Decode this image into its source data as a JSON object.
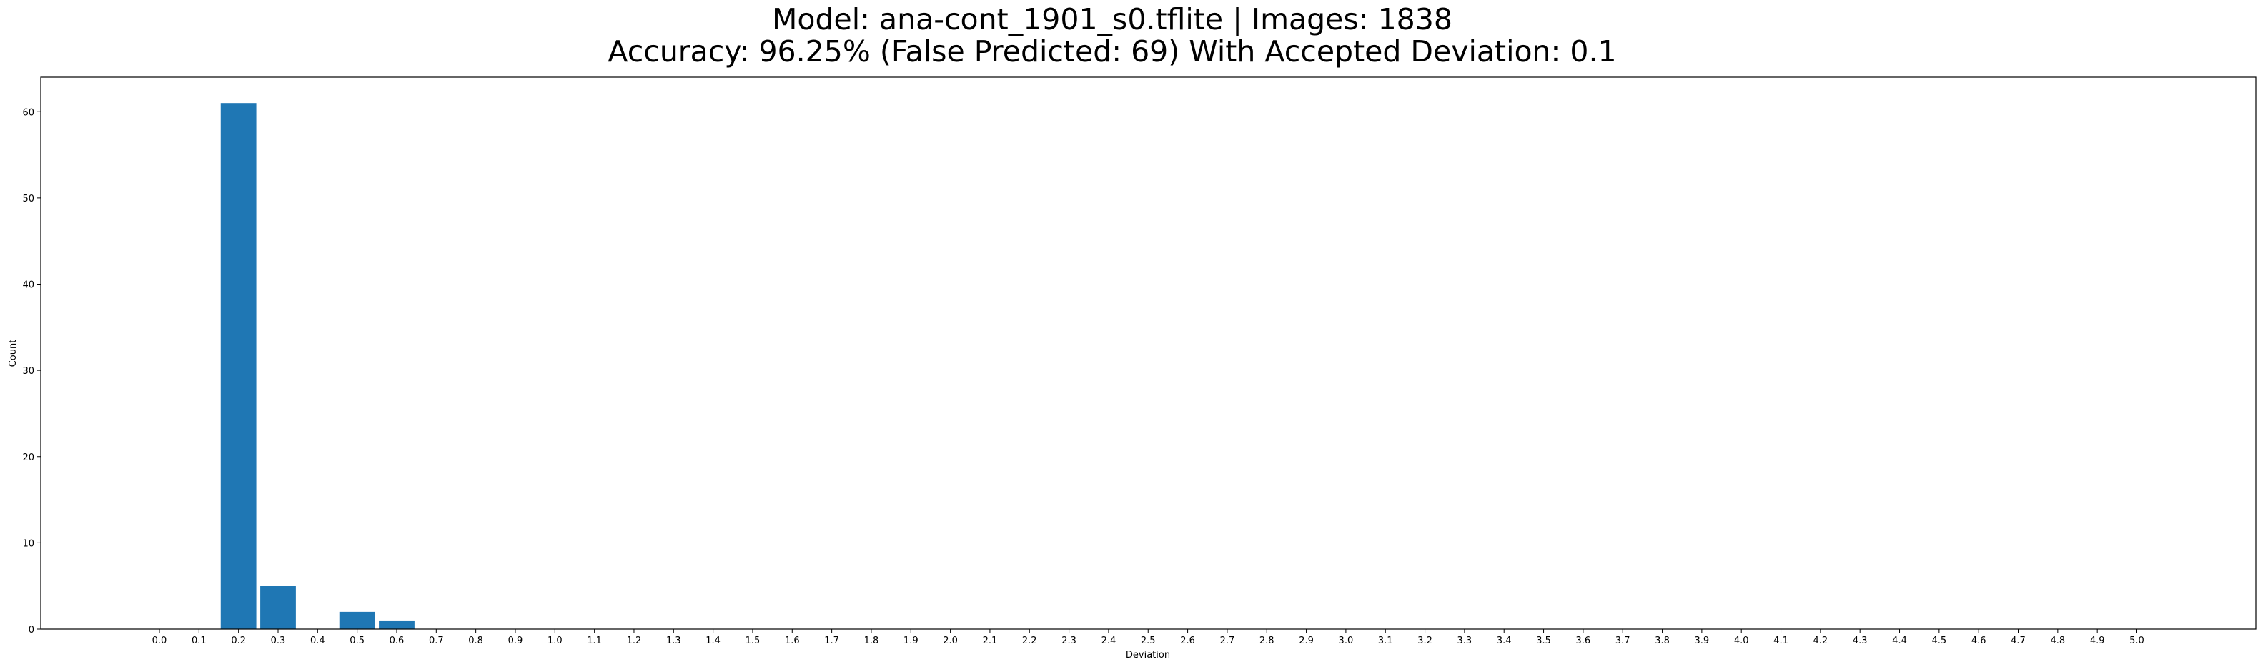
{
  "chart_data": {
    "type": "bar",
    "title_line1": "Model: ana-cont_1901_s0.tflite  |  Images: 1838",
    "title_line2": "Accuracy: 96.25% (False Predicted: 69) With Accepted Deviation: 0.1",
    "xlabel": "Deviation",
    "ylabel": "Count",
    "ylim": [
      0,
      64
    ],
    "yticks": [
      0,
      10,
      20,
      30,
      40,
      50,
      60
    ],
    "categories": [
      "0.0",
      "0.1",
      "0.2",
      "0.3",
      "0.4",
      "0.5",
      "0.6",
      "0.7",
      "0.8",
      "0.9",
      "1.0",
      "1.1",
      "1.2",
      "1.3",
      "1.4",
      "1.5",
      "1.6",
      "1.7",
      "1.8",
      "1.9",
      "2.0",
      "2.1",
      "2.2",
      "2.3",
      "2.4",
      "2.5",
      "2.6",
      "2.7",
      "2.8",
      "2.9",
      "3.0",
      "3.1",
      "3.2",
      "3.3",
      "3.4",
      "3.5",
      "3.6",
      "3.7",
      "3.8",
      "3.9",
      "4.0",
      "4.1",
      "4.2",
      "4.3",
      "4.4",
      "4.5",
      "4.6",
      "4.7",
      "4.8",
      "4.9",
      "5.0"
    ],
    "values": [
      0,
      0,
      61,
      5,
      0,
      2,
      1,
      0,
      0,
      0,
      0,
      0,
      0,
      0,
      0,
      0,
      0,
      0,
      0,
      0,
      0,
      0,
      0,
      0,
      0,
      0,
      0,
      0,
      0,
      0,
      0,
      0,
      0,
      0,
      0,
      0,
      0,
      0,
      0,
      0,
      0,
      0,
      0,
      0,
      0,
      0,
      0,
      0,
      0,
      0,
      0
    ],
    "bar_color": "#1f77b4",
    "grid": false
  }
}
